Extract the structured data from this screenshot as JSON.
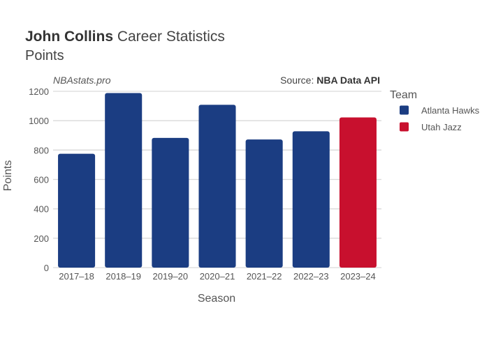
{
  "header": {
    "player_name": "John Collins",
    "title_rest": " Career Statistics",
    "subtitle": "Points"
  },
  "watermark": "NBAstats.pro",
  "source": {
    "prefix": "Source: ",
    "name": "NBA Data API"
  },
  "colors": {
    "Atlanta Hawks": "#1b3d82",
    "Utah Jazz": "#c8102e"
  },
  "chart_data": {
    "type": "bar",
    "title": "John Collins Career Statistics",
    "subtitle": "Points",
    "xlabel": "Season",
    "ylabel": "Points",
    "ylim": [
      0,
      1200
    ],
    "yticks": [
      0,
      200,
      400,
      600,
      800,
      1000,
      1200
    ],
    "grid": true,
    "legend": {
      "title": "Team",
      "placement": "right",
      "entries": [
        "Atlanta Hawks",
        "Utah Jazz"
      ]
    },
    "categories": [
      "2017–18",
      "2018–19",
      "2019–20",
      "2020–21",
      "2021–22",
      "2022–23",
      "2023–24"
    ],
    "teams": [
      "Atlanta Hawks",
      "Atlanta Hawks",
      "Atlanta Hawks",
      "Atlanta Hawks",
      "Atlanta Hawks",
      "Atlanta Hawks",
      "Utah Jazz"
    ],
    "values": [
      775,
      1188,
      883,
      1108,
      872,
      928,
      1022
    ]
  }
}
